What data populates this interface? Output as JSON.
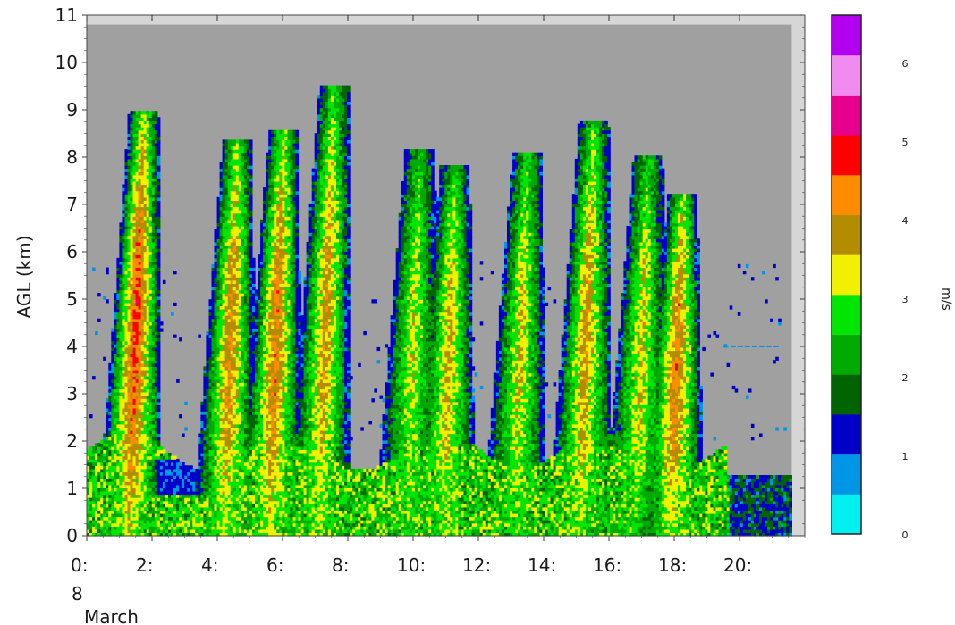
{
  "chart_data": {
    "type": "heatmap",
    "ylabel": "AGL (km)",
    "xlabel": "",
    "x_ticks": [
      "0:",
      "2:",
      "4:",
      "6:",
      "8:",
      "10:",
      "12:",
      "14:",
      "16:",
      "18:",
      "20:"
    ],
    "x_tick_hours": [
      0,
      2,
      4,
      6,
      8,
      10,
      12,
      14,
      16,
      18,
      20
    ],
    "x_date_label": "8",
    "x_month_label": "March",
    "xlim": [
      0,
      22
    ],
    "data_end_hour": 21.6,
    "y_ticks": [
      "0",
      "1",
      "2",
      "3",
      "4",
      "5",
      "6",
      "7",
      "8",
      "9",
      "10",
      "11"
    ],
    "ylim": [
      0,
      11
    ],
    "data_top_km": 10.8,
    "colorbar": {
      "label": "m/s",
      "ticks": [
        "0",
        "1",
        "2",
        "3",
        "4",
        "5",
        "6"
      ],
      "vmin": 0,
      "vmax": 6.6,
      "colors": [
        "#00f0f0",
        "#0096e6",
        "#0000c8",
        "#006400",
        "#00aa00",
        "#00e600",
        "#f0f000",
        "#b48c00",
        "#ff8c00",
        "#ff0000",
        "#e6008c",
        "#f08cf0",
        "#b400f0"
      ]
    },
    "no_data_color": "#a0a0a0",
    "series": [
      {
        "center_hour": 1.4,
        "top_km": 9.0,
        "peak_velocity": 4.8
      },
      {
        "center_hour": 4.3,
        "top_km": 8.4,
        "peak_velocity": 4.2
      },
      {
        "center_hour": 5.7,
        "top_km": 8.6,
        "peak_velocity": 4.4
      },
      {
        "center_hour": 7.2,
        "top_km": 9.5,
        "peak_velocity": 4.0
      },
      {
        "center_hour": 9.9,
        "top_km": 8.2,
        "peak_velocity": 3.4
      },
      {
        "center_hour": 11.0,
        "top_km": 7.8,
        "peak_velocity": 3.8
      },
      {
        "center_hour": 13.2,
        "top_km": 8.1,
        "peak_velocity": 3.6
      },
      {
        "center_hour": 15.2,
        "top_km": 8.8,
        "peak_velocity": 4.0
      },
      {
        "center_hour": 16.9,
        "top_km": 8.0,
        "peak_velocity": 3.6
      },
      {
        "center_hour": 18.0,
        "top_km": 7.2,
        "peak_velocity": 4.4
      }
    ]
  }
}
